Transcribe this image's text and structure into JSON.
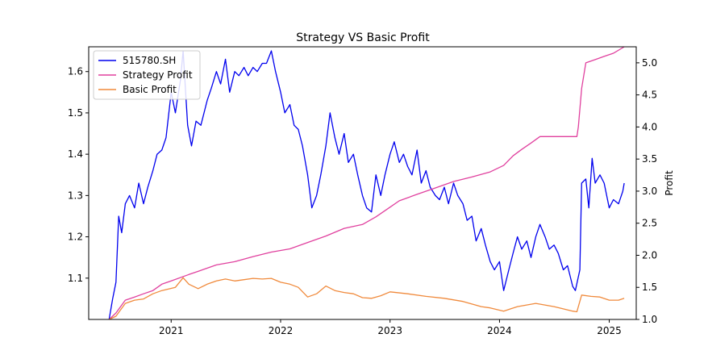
{
  "chart_data": {
    "type": "line",
    "title": "Strategy VS Basic Profit",
    "xlabel": "",
    "ylabel": "",
    "ylabel_right": "Profit",
    "x_ticks": [
      "2021",
      "2022",
      "2023",
      "2024",
      "2025"
    ],
    "x_tick_dates": [
      "2021-01-01",
      "2022-01-01",
      "2023-01-01",
      "2024-01-01",
      "2025-01-01"
    ],
    "xlim": [
      "2020-04-01",
      "2025-04-01"
    ],
    "ylim_left": [
      1.0,
      1.66
    ],
    "ylim_right": [
      1.0,
      5.25
    ],
    "yticks_left": [
      "1.1",
      "1.2",
      "1.3",
      "1.4",
      "1.5",
      "1.6"
    ],
    "yticks_right": [
      "1.0",
      "1.5",
      "2.0",
      "2.5",
      "3.0",
      "3.5",
      "4.0",
      "4.5",
      "5.0"
    ],
    "legend_position": "upper-left",
    "series": [
      {
        "name": "515780.SH",
        "axis": "left",
        "color": "#0000ee",
        "points": [
          [
            "2020-06-08",
            1.0
          ],
          [
            "2020-06-20",
            1.05
          ],
          [
            "2020-07-01",
            1.09
          ],
          [
            "2020-07-10",
            1.25
          ],
          [
            "2020-07-20",
            1.21
          ],
          [
            "2020-08-01",
            1.28
          ],
          [
            "2020-08-15",
            1.3
          ],
          [
            "2020-09-01",
            1.27
          ],
          [
            "2020-09-15",
            1.33
          ],
          [
            "2020-10-01",
            1.28
          ],
          [
            "2020-10-15",
            1.32
          ],
          [
            "2020-11-01",
            1.36
          ],
          [
            "2020-11-15",
            1.4
          ],
          [
            "2020-12-01",
            1.41
          ],
          [
            "2020-12-15",
            1.44
          ],
          [
            "2021-01-01",
            1.55
          ],
          [
            "2021-01-15",
            1.5
          ],
          [
            "2021-02-01",
            1.58
          ],
          [
            "2021-02-10",
            1.65
          ],
          [
            "2021-02-25",
            1.47
          ],
          [
            "2021-03-10",
            1.42
          ],
          [
            "2021-03-25",
            1.48
          ],
          [
            "2021-04-10",
            1.47
          ],
          [
            "2021-05-01",
            1.53
          ],
          [
            "2021-05-15",
            1.56
          ],
          [
            "2021-06-01",
            1.6
          ],
          [
            "2021-06-15",
            1.57
          ],
          [
            "2021-07-01",
            1.63
          ],
          [
            "2021-07-15",
            1.55
          ],
          [
            "2021-08-01",
            1.6
          ],
          [
            "2021-08-15",
            1.59
          ],
          [
            "2021-09-01",
            1.61
          ],
          [
            "2021-09-15",
            1.59
          ],
          [
            "2021-10-01",
            1.61
          ],
          [
            "2021-10-15",
            1.6
          ],
          [
            "2021-11-01",
            1.62
          ],
          [
            "2021-11-15",
            1.62
          ],
          [
            "2021-12-01",
            1.65
          ],
          [
            "2021-12-15",
            1.6
          ],
          [
            "2022-01-01",
            1.55
          ],
          [
            "2022-01-15",
            1.5
          ],
          [
            "2022-02-01",
            1.52
          ],
          [
            "2022-02-15",
            1.47
          ],
          [
            "2022-03-01",
            1.46
          ],
          [
            "2022-03-15",
            1.42
          ],
          [
            "2022-04-01",
            1.35
          ],
          [
            "2022-04-15",
            1.27
          ],
          [
            "2022-05-01",
            1.3
          ],
          [
            "2022-05-15",
            1.35
          ],
          [
            "2022-06-01",
            1.42
          ],
          [
            "2022-06-15",
            1.5
          ],
          [
            "2022-07-01",
            1.44
          ],
          [
            "2022-07-15",
            1.4
          ],
          [
            "2022-08-01",
            1.45
          ],
          [
            "2022-08-15",
            1.38
          ],
          [
            "2022-09-01",
            1.4
          ],
          [
            "2022-09-15",
            1.35
          ],
          [
            "2022-10-01",
            1.3
          ],
          [
            "2022-10-15",
            1.27
          ],
          [
            "2022-10-31",
            1.26
          ],
          [
            "2022-11-15",
            1.35
          ],
          [
            "2022-12-01",
            1.3
          ],
          [
            "2022-12-15",
            1.35
          ],
          [
            "2023-01-01",
            1.4
          ],
          [
            "2023-01-15",
            1.43
          ],
          [
            "2023-02-01",
            1.38
          ],
          [
            "2023-02-15",
            1.4
          ],
          [
            "2023-03-01",
            1.37
          ],
          [
            "2023-03-15",
            1.35
          ],
          [
            "2023-04-01",
            1.41
          ],
          [
            "2023-04-15",
            1.33
          ],
          [
            "2023-05-01",
            1.36
          ],
          [
            "2023-05-15",
            1.32
          ],
          [
            "2023-06-01",
            1.3
          ],
          [
            "2023-06-15",
            1.29
          ],
          [
            "2023-07-01",
            1.32
          ],
          [
            "2023-07-15",
            1.28
          ],
          [
            "2023-08-01",
            1.33
          ],
          [
            "2023-08-15",
            1.3
          ],
          [
            "2023-09-01",
            1.28
          ],
          [
            "2023-09-15",
            1.24
          ],
          [
            "2023-10-01",
            1.25
          ],
          [
            "2023-10-15",
            1.19
          ],
          [
            "2023-11-01",
            1.22
          ],
          [
            "2023-11-15",
            1.18
          ],
          [
            "2023-12-01",
            1.14
          ],
          [
            "2023-12-15",
            1.12
          ],
          [
            "2024-01-01",
            1.14
          ],
          [
            "2024-01-15",
            1.07
          ],
          [
            "2024-02-01",
            1.12
          ],
          [
            "2024-02-15",
            1.16
          ],
          [
            "2024-03-01",
            1.2
          ],
          [
            "2024-03-15",
            1.17
          ],
          [
            "2024-04-01",
            1.19
          ],
          [
            "2024-04-15",
            1.15
          ],
          [
            "2024-05-01",
            1.2
          ],
          [
            "2024-05-15",
            1.23
          ],
          [
            "2024-06-01",
            1.2
          ],
          [
            "2024-06-15",
            1.17
          ],
          [
            "2024-07-01",
            1.18
          ],
          [
            "2024-07-15",
            1.16
          ],
          [
            "2024-08-01",
            1.12
          ],
          [
            "2024-08-15",
            1.13
          ],
          [
            "2024-09-01",
            1.08
          ],
          [
            "2024-09-10",
            1.07
          ],
          [
            "2024-09-25",
            1.12
          ],
          [
            "2024-10-01",
            1.33
          ],
          [
            "2024-10-15",
            1.34
          ],
          [
            "2024-10-25",
            1.27
          ],
          [
            "2024-11-05",
            1.39
          ],
          [
            "2024-11-15",
            1.33
          ],
          [
            "2024-12-01",
            1.35
          ],
          [
            "2024-12-15",
            1.33
          ],
          [
            "2025-01-01",
            1.27
          ],
          [
            "2025-01-15",
            1.29
          ],
          [
            "2025-02-01",
            1.28
          ],
          [
            "2025-02-15",
            1.31
          ],
          [
            "2025-02-20",
            1.33
          ]
        ]
      },
      {
        "name": "Strategy Profit",
        "axis": "right",
        "color": "#e0409e",
        "points": [
          [
            "2020-06-08",
            1.0
          ],
          [
            "2020-07-01",
            1.1
          ],
          [
            "2020-08-01",
            1.3
          ],
          [
            "2020-09-01",
            1.35
          ],
          [
            "2020-10-01",
            1.4
          ],
          [
            "2020-11-01",
            1.45
          ],
          [
            "2020-12-01",
            1.55
          ],
          [
            "2021-01-01",
            1.6
          ],
          [
            "2021-03-01",
            1.7
          ],
          [
            "2021-04-01",
            1.75
          ],
          [
            "2021-06-01",
            1.85
          ],
          [
            "2021-08-01",
            1.9
          ],
          [
            "2021-10-01",
            1.98
          ],
          [
            "2021-12-01",
            2.05
          ],
          [
            "2022-02-01",
            2.1
          ],
          [
            "2022-04-01",
            2.2
          ],
          [
            "2022-06-01",
            2.3
          ],
          [
            "2022-08-01",
            2.42
          ],
          [
            "2022-10-01",
            2.48
          ],
          [
            "2022-11-15",
            2.6
          ],
          [
            "2023-01-01",
            2.75
          ],
          [
            "2023-02-01",
            2.85
          ],
          [
            "2023-04-01",
            2.95
          ],
          [
            "2023-06-01",
            3.05
          ],
          [
            "2023-08-01",
            3.15
          ],
          [
            "2023-10-01",
            3.22
          ],
          [
            "2023-12-01",
            3.3
          ],
          [
            "2024-01-15",
            3.4
          ],
          [
            "2024-02-15",
            3.55
          ],
          [
            "2024-03-15",
            3.65
          ],
          [
            "2024-04-15",
            3.75
          ],
          [
            "2024-05-15",
            3.85
          ],
          [
            "2024-06-15",
            3.85
          ],
          [
            "2024-08-01",
            3.85
          ],
          [
            "2024-09-15",
            3.85
          ],
          [
            "2024-09-20",
            4.0
          ],
          [
            "2024-10-01",
            4.6
          ],
          [
            "2024-10-15",
            5.0
          ],
          [
            "2024-11-15",
            5.05
          ],
          [
            "2024-12-15",
            5.1
          ],
          [
            "2025-01-15",
            5.15
          ],
          [
            "2025-02-20",
            5.25
          ]
        ]
      },
      {
        "name": "Basic Profit",
        "axis": "right",
        "color": "#f08a3c",
        "points": [
          [
            "2020-06-08",
            1.0
          ],
          [
            "2020-07-01",
            1.05
          ],
          [
            "2020-08-01",
            1.25
          ],
          [
            "2020-09-01",
            1.3
          ],
          [
            "2020-10-01",
            1.32
          ],
          [
            "2020-11-01",
            1.4
          ],
          [
            "2020-12-01",
            1.45
          ],
          [
            "2021-01-15",
            1.5
          ],
          [
            "2021-02-10",
            1.65
          ],
          [
            "2021-03-01",
            1.55
          ],
          [
            "2021-04-01",
            1.48
          ],
          [
            "2021-05-01",
            1.55
          ],
          [
            "2021-06-01",
            1.6
          ],
          [
            "2021-07-01",
            1.63
          ],
          [
            "2021-08-01",
            1.6
          ],
          [
            "2021-09-01",
            1.62
          ],
          [
            "2021-10-01",
            1.64
          ],
          [
            "2021-11-01",
            1.63
          ],
          [
            "2021-12-01",
            1.64
          ],
          [
            "2022-01-01",
            1.58
          ],
          [
            "2022-02-01",
            1.55
          ],
          [
            "2022-03-01",
            1.5
          ],
          [
            "2022-04-01",
            1.35
          ],
          [
            "2022-05-01",
            1.4
          ],
          [
            "2022-06-01",
            1.52
          ],
          [
            "2022-07-01",
            1.45
          ],
          [
            "2022-08-01",
            1.42
          ],
          [
            "2022-09-01",
            1.4
          ],
          [
            "2022-10-01",
            1.34
          ],
          [
            "2022-11-01",
            1.33
          ],
          [
            "2022-12-01",
            1.37
          ],
          [
            "2023-01-01",
            1.43
          ],
          [
            "2023-03-01",
            1.4
          ],
          [
            "2023-05-01",
            1.36
          ],
          [
            "2023-07-01",
            1.33
          ],
          [
            "2023-09-01",
            1.28
          ],
          [
            "2023-11-01",
            1.2
          ],
          [
            "2023-12-01",
            1.18
          ],
          [
            "2024-01-15",
            1.13
          ],
          [
            "2024-03-01",
            1.2
          ],
          [
            "2024-05-01",
            1.25
          ],
          [
            "2024-07-01",
            1.2
          ],
          [
            "2024-09-01",
            1.13
          ],
          [
            "2024-09-15",
            1.12
          ],
          [
            "2024-10-01",
            1.38
          ],
          [
            "2024-11-01",
            1.36
          ],
          [
            "2024-12-01",
            1.35
          ],
          [
            "2025-01-01",
            1.3
          ],
          [
            "2025-02-01",
            1.3
          ],
          [
            "2025-02-20",
            1.33
          ]
        ]
      }
    ]
  }
}
